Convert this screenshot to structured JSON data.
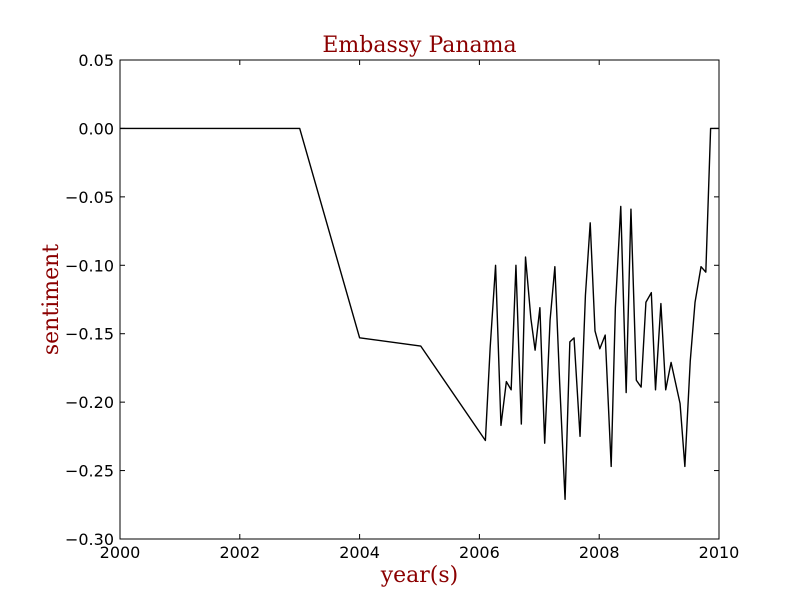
{
  "chart_data": {
    "type": "line",
    "title": "Embassy Panama",
    "xlabel": "year(s)",
    "ylabel": "sentiment",
    "xlim": [
      2000,
      2010
    ],
    "ylim": [
      -0.3,
      0.05
    ],
    "x_ticks": [
      "2000",
      "2002",
      "2004",
      "2006",
      "2008",
      "2010"
    ],
    "y_ticks": [
      "0.05",
      "0.00",
      "−0.05",
      "−0.10",
      "−0.15",
      "−0.20",
      "−0.25",
      "−0.30"
    ],
    "grid": false,
    "legend": "none",
    "series": [
      {
        "color": "#000000",
        "points": [
          [
            2000.0,
            0.0
          ],
          [
            2003.0,
            0.0
          ],
          [
            2004.0,
            -0.153
          ],
          [
            2005.02,
            -0.159
          ],
          [
            2006.1,
            -0.228
          ],
          [
            2006.18,
            -0.16
          ],
          [
            2006.27,
            -0.1
          ],
          [
            2006.36,
            -0.217
          ],
          [
            2006.45,
            -0.185
          ],
          [
            2006.53,
            -0.191
          ],
          [
            2006.61,
            -0.1
          ],
          [
            2006.7,
            -0.216
          ],
          [
            2006.77,
            -0.094
          ],
          [
            2006.86,
            -0.139
          ],
          [
            2006.93,
            -0.162
          ],
          [
            2007.01,
            -0.131
          ],
          [
            2007.09,
            -0.23
          ],
          [
            2007.18,
            -0.14
          ],
          [
            2007.26,
            -0.101
          ],
          [
            2007.34,
            -0.186
          ],
          [
            2007.43,
            -0.271
          ],
          [
            2007.51,
            -0.156
          ],
          [
            2007.58,
            -0.153
          ],
          [
            2007.68,
            -0.225
          ],
          [
            2007.77,
            -0.122
          ],
          [
            2007.85,
            -0.069
          ],
          [
            2007.93,
            -0.148
          ],
          [
            2008.01,
            -0.161
          ],
          [
            2008.1,
            -0.151
          ],
          [
            2008.2,
            -0.247
          ],
          [
            2008.27,
            -0.131
          ],
          [
            2008.36,
            -0.057
          ],
          [
            2008.45,
            -0.193
          ],
          [
            2008.53,
            -0.059
          ],
          [
            2008.62,
            -0.184
          ],
          [
            2008.7,
            -0.189
          ],
          [
            2008.78,
            -0.127
          ],
          [
            2008.87,
            -0.12
          ],
          [
            2008.94,
            -0.191
          ],
          [
            2009.03,
            -0.128
          ],
          [
            2009.11,
            -0.191
          ],
          [
            2009.2,
            -0.171
          ],
          [
            2009.35,
            -0.201
          ],
          [
            2009.43,
            -0.247
          ],
          [
            2009.52,
            -0.17
          ],
          [
            2009.6,
            -0.127
          ],
          [
            2009.7,
            -0.101
          ],
          [
            2009.78,
            -0.105
          ],
          [
            2009.86,
            0.0
          ],
          [
            2010.0,
            0.0
          ]
        ]
      }
    ],
    "title_color": "#8b0000",
    "label_color": "#8b0000"
  }
}
